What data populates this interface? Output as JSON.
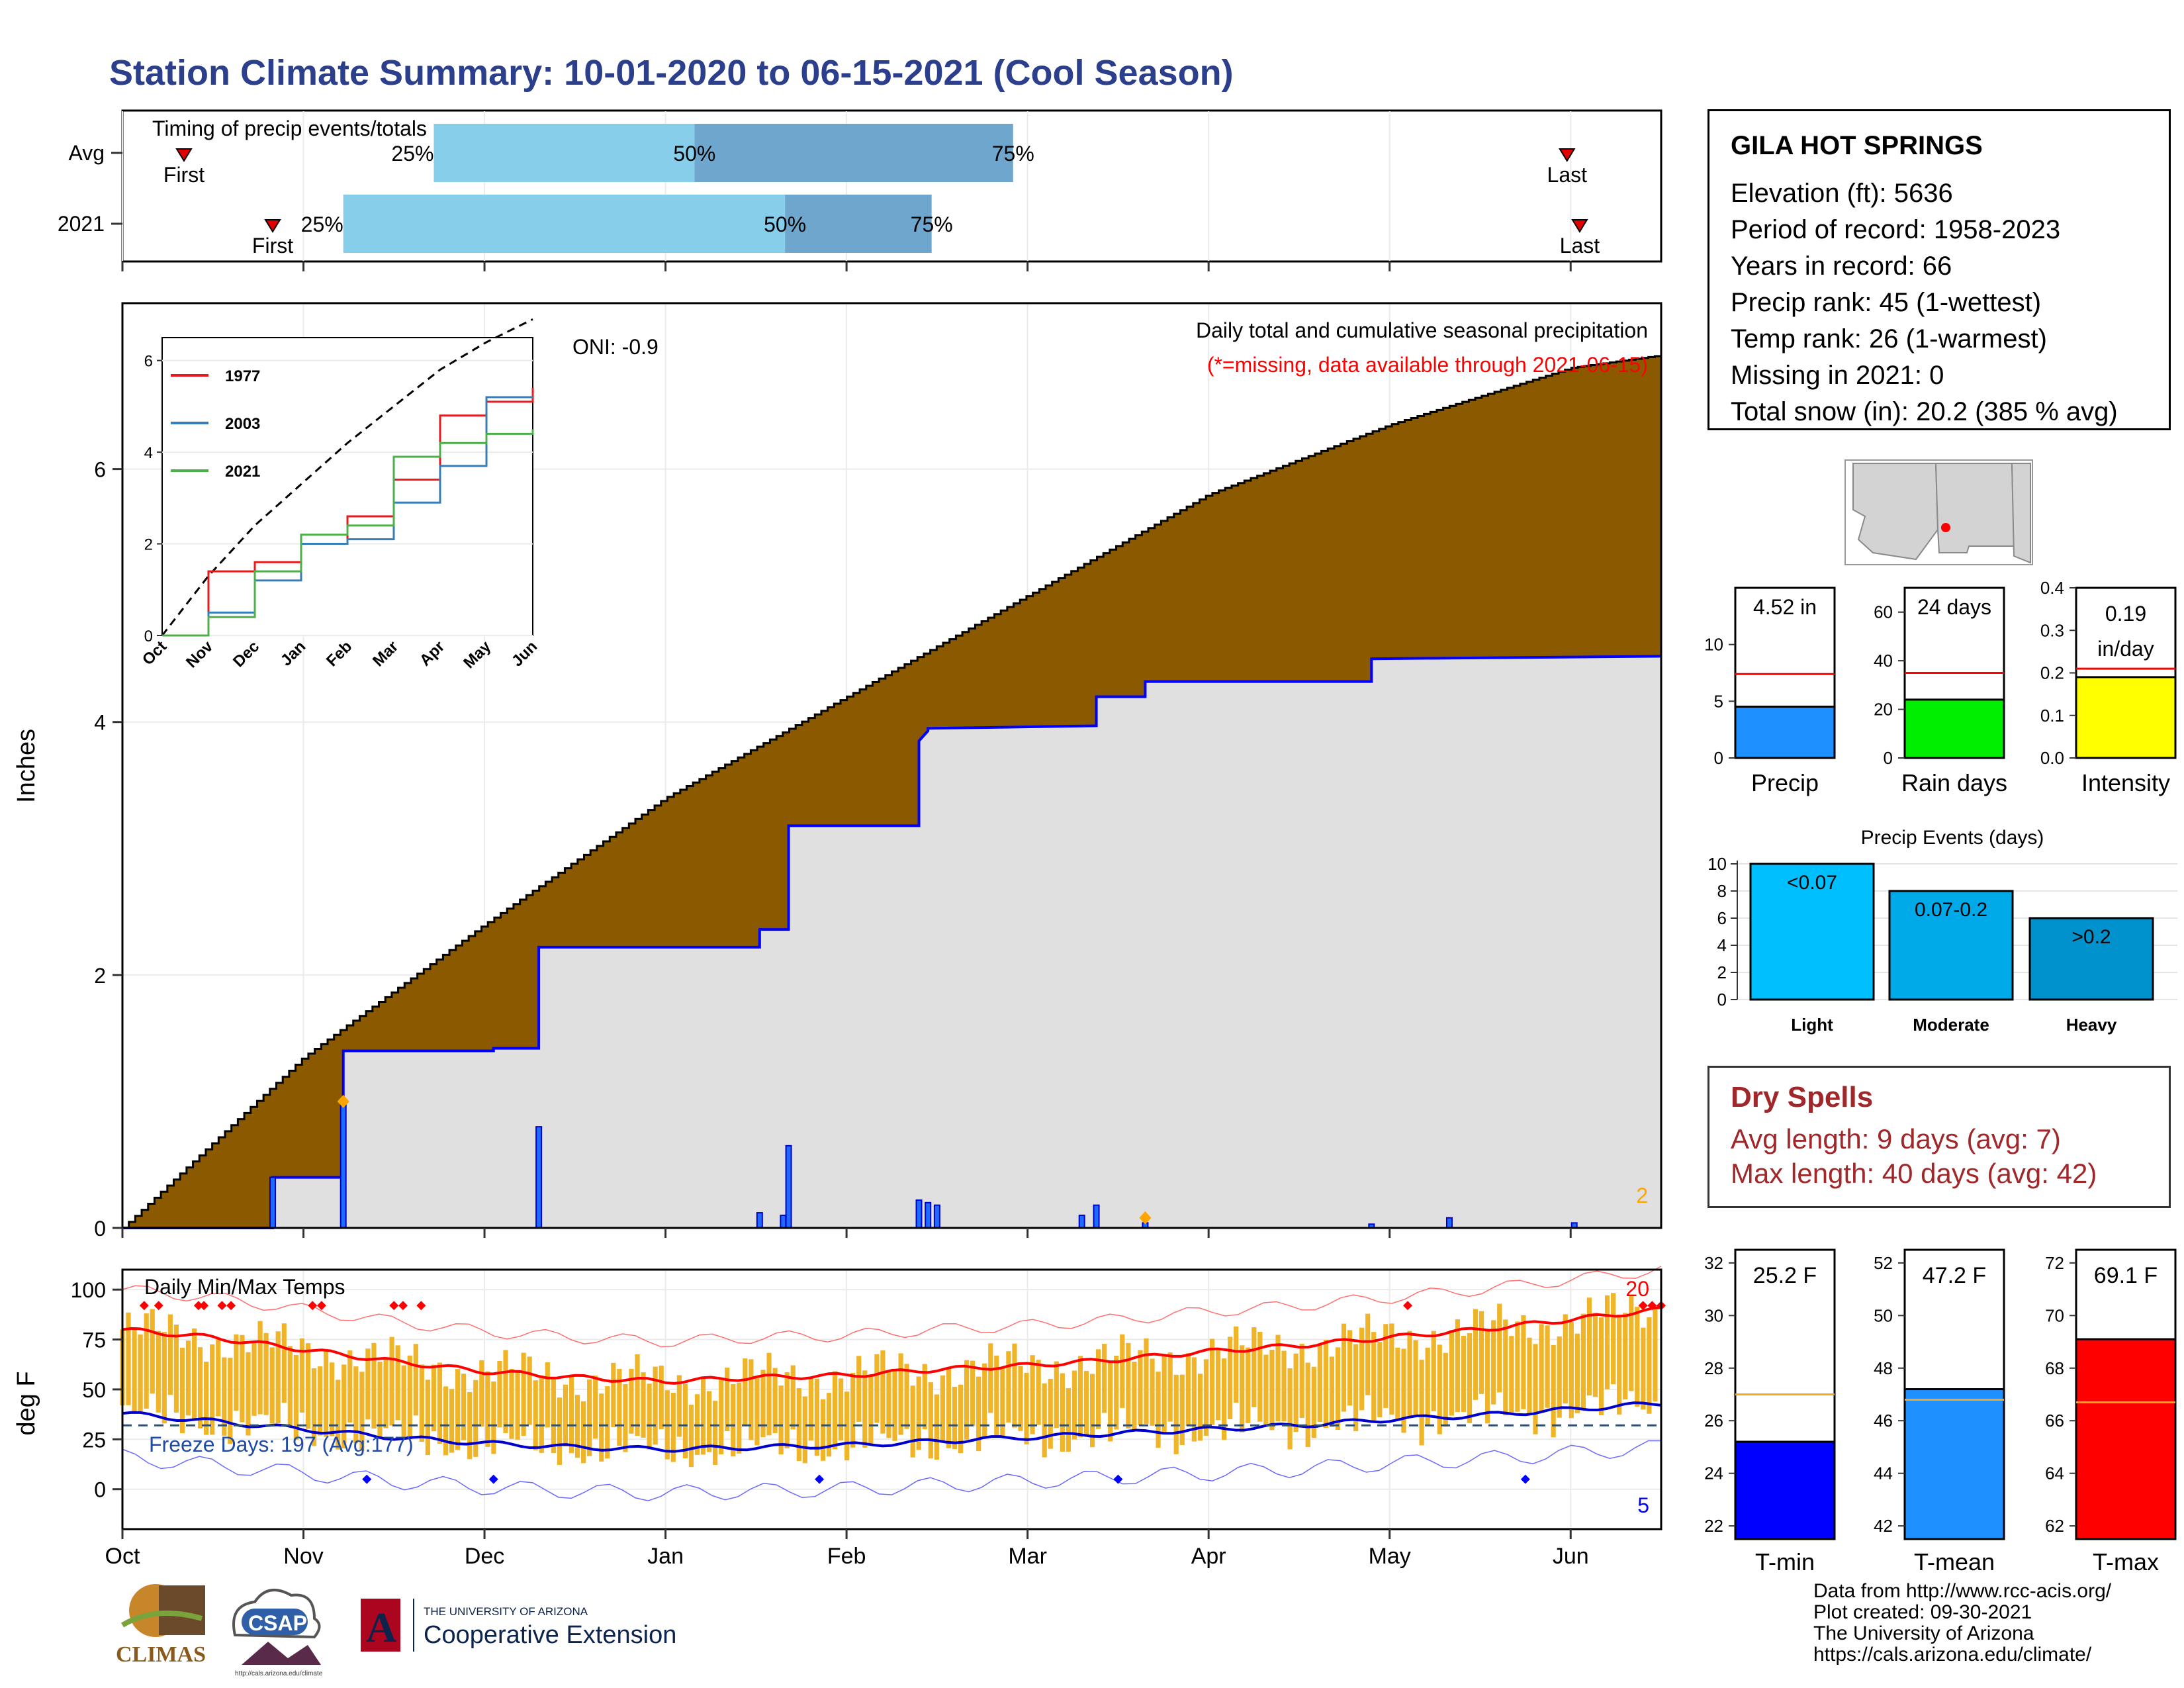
{
  "title": "Station Climate Summary: 10-01-2020 to 06-15-2021 (Cool Season)",
  "timing": {
    "heading": "Timing of precip events/totals",
    "rows": [
      {
        "label": "Avg",
        "first": 0.34,
        "p25": 1.72,
        "p50": 3.16,
        "p75": 4.92,
        "last": 7.98
      },
      {
        "label": "2021",
        "first": 0.83,
        "p25": 1.22,
        "p50": 3.66,
        "p75": 4.47,
        "last": 8.05
      }
    ],
    "first_label": "First",
    "last_label": "Last",
    "p25_label": "25%",
    "p50_label": "50%",
    "p75_label": "75%"
  },
  "station": {
    "name": "GILA HOT SPRINGS",
    "rows": [
      "Elevation (ft): 5636",
      "Period of record: 1958-2023",
      "Years in record: 66",
      "Precip rank: 45 (1-wettest)",
      "Temp rank: 26 (1-warmest)",
      "Missing in 2021: 0",
      "Total snow (in): 20.2 (385 % avg)"
    ]
  },
  "main_chart": {
    "ylabel": "Inches",
    "ylim": [
      0,
      7.5
    ],
    "yticks": [
      "0",
      "2",
      "4",
      "6"
    ],
    "oni": "ONI: -0.9",
    "caption1": "Daily total and cumulative seasonal precipitation",
    "caption2": "(*=missing, data available through 2021-06-15)",
    "corner_count": "2",
    "months": [
      "Oct",
      "Nov",
      "Dec",
      "Jan",
      "Feb",
      "Mar",
      "Apr",
      "May",
      "Jun"
    ]
  },
  "chart_data": [
    {
      "type": "area",
      "name": "cumulative precipitation",
      "x_months": [
        0,
        1,
        2,
        3,
        4,
        5,
        6,
        7,
        8,
        8.5
      ],
      "avg_cumulative": [
        0,
        1.35,
        2.4,
        3.4,
        4.2,
        5.0,
        5.8,
        6.35,
        6.8,
        6.9
      ],
      "obs_steps_x": [
        0,
        0.83,
        0.83,
        1.22,
        1.22,
        2.05,
        2.05,
        2.3,
        2.3,
        3.52,
        3.52,
        3.68,
        3.68,
        4.4,
        4.4,
        4.45,
        4.45,
        5.38,
        5.38,
        5.65,
        5.65,
        6.9,
        6.9,
        8.5
      ],
      "obs_steps_y": [
        0,
        0,
        0.4,
        0.4,
        1.4,
        1.4,
        1.42,
        1.42,
        2.22,
        2.22,
        2.36,
        2.36,
        3.18,
        3.18,
        3.85,
        3.93,
        3.95,
        3.97,
        4.2,
        4.2,
        4.32,
        4.32,
        4.5,
        4.52
      ]
    },
    {
      "type": "bar",
      "name": "daily precipitation",
      "x_months": [
        0.83,
        1.22,
        2.3,
        3.52,
        3.65,
        3.68,
        4.4,
        4.45,
        4.5,
        5.3,
        5.38,
        5.65,
        6.9,
        7.33,
        8.02
      ],
      "values": [
        0.4,
        1.0,
        0.8,
        0.12,
        0.1,
        0.65,
        0.22,
        0.2,
        0.18,
        0.1,
        0.18,
        0.04,
        0.03,
        0.08,
        0.04
      ]
    },
    {
      "type": "line",
      "title": "inset",
      "xlabel": "",
      "ylabel": "",
      "ylim": [
        0,
        6.5
      ],
      "categories": [
        "Oct",
        "Nov",
        "Dec",
        "Jan",
        "Feb",
        "Mar",
        "Apr",
        "May",
        "Jun"
      ],
      "series": [
        {
          "name": "1977",
          "color": "#e41a1c",
          "values": [
            0,
            1.4,
            1.6,
            2.0,
            2.6,
            3.4,
            4.8,
            5.1,
            5.4
          ]
        },
        {
          "name": "2003",
          "color": "#377eb8",
          "values": [
            0,
            0.5,
            1.2,
            2.0,
            2.1,
            2.9,
            3.7,
            5.2,
            5.2
          ]
        },
        {
          "name": "2021",
          "color": "#4daf4a",
          "values": [
            0,
            0.4,
            1.4,
            2.2,
            2.4,
            3.9,
            4.2,
            4.4,
            4.5
          ]
        }
      ],
      "avg_dashed": [
        0,
        1.3,
        2.4,
        3.3,
        4.2,
        5.0,
        5.8,
        6.4,
        6.9
      ],
      "yticks": [
        "0",
        "2",
        "4",
        "6"
      ]
    },
    {
      "type": "bar",
      "title": "precip",
      "categories": [
        "Precip"
      ],
      "values": [
        4.52
      ],
      "avg": 7.4,
      "ylim": [
        0,
        15
      ],
      "label": "4.52 in",
      "color": "#1e90ff",
      "yticks": [
        "0",
        "5",
        "10"
      ]
    },
    {
      "type": "bar",
      "title": "rain days",
      "categories": [
        "Rain days"
      ],
      "values": [
        24
      ],
      "avg": 35,
      "ylim": [
        0,
        70
      ],
      "label": "24 days",
      "color": "#00ee00",
      "yticks": [
        "0",
        "20",
        "40",
        "60"
      ]
    },
    {
      "type": "bar",
      "title": "intensity",
      "categories": [
        "Intensity"
      ],
      "values": [
        0.19
      ],
      "avg": 0.21,
      "ylim": [
        0,
        0.4
      ],
      "label1": "0.19",
      "label2": "in/day",
      "color": "#ffff00",
      "yticks": [
        "0.0",
        "0.1",
        "0.2",
        "0.3",
        "0.4"
      ]
    },
    {
      "type": "bar",
      "title": "Precip Events (days)",
      "categories": [
        "Light",
        "Moderate",
        "Heavy"
      ],
      "values": [
        10,
        8,
        6
      ],
      "labels": [
        "<0.07",
        "0.07-0.2",
        ">0.2"
      ],
      "colors": [
        "#00bfff",
        "#00a9e8",
        "#0092cc"
      ],
      "ylim": [
        0,
        10
      ],
      "yticks": [
        "0",
        "2",
        "4",
        "6",
        "8",
        "10"
      ]
    },
    {
      "type": "line",
      "title": "Daily Min/Max Temps",
      "ylabel": "deg F",
      "ylim": [
        -20,
        110
      ],
      "yticks": [
        "0",
        "25",
        "50",
        "75",
        "100"
      ],
      "x_months": [
        0,
        0.5,
        1,
        1.5,
        2,
        2.5,
        3,
        3.5,
        4,
        4.5,
        5,
        5.5,
        6,
        6.5,
        7,
        7.5,
        8,
        8.5
      ],
      "avg_max": [
        80,
        76,
        70,
        64,
        59,
        56,
        54,
        56,
        57,
        60,
        62,
        65,
        69,
        72,
        76,
        80,
        85,
        90
      ],
      "avg_min": [
        38,
        34,
        30,
        26,
        23,
        21,
        20,
        21,
        22,
        24,
        26,
        28,
        30,
        32,
        35,
        37,
        40,
        43
      ],
      "freeze_line": 32,
      "freeze_text": "Freeze Days: 197 (Avg:177)",
      "count_high": "20",
      "count_low": "5"
    },
    {
      "type": "bar",
      "title": "T-min",
      "categories": [
        "T-min"
      ],
      "values": [
        25.2
      ],
      "avg": 27.0,
      "ylim": [
        21.5,
        32.5
      ],
      "label": "25.2 F",
      "color": "#0000ff",
      "yticks": [
        "22",
        "24",
        "26",
        "28",
        "30",
        "32"
      ]
    },
    {
      "type": "bar",
      "title": "T-mean",
      "categories": [
        "T-mean"
      ],
      "values": [
        47.2
      ],
      "avg": 46.8,
      "ylim": [
        41.5,
        52.5
      ],
      "label": "47.2 F",
      "color": "#1e90ff",
      "yticks": [
        "42",
        "44",
        "46",
        "48",
        "50",
        "52"
      ]
    },
    {
      "type": "bar",
      "title": "T-max",
      "categories": [
        "T-max"
      ],
      "values": [
        69.1
      ],
      "avg": 66.7,
      "ylim": [
        61.5,
        72.5
      ],
      "label": "69.1 F",
      "color": "#ff0000",
      "yticks": [
        "62",
        "64",
        "66",
        "68",
        "70",
        "72"
      ]
    }
  ],
  "dry_spells": {
    "title": "Dry Spells",
    "avg_length": "Avg length: 9 days (avg: 7)",
    "max_length": "Max length: 40 days (avg: 42)"
  },
  "footer": {
    "line1": "Data from http://www.rcc-acis.org/",
    "line2": "Plot created: 09-30-2021",
    "line3": "The University of Arizona",
    "line4": "https://cals.arizona.edu/climate/"
  },
  "logos": {
    "climas": "CLIMAS",
    "csap": "CSAP",
    "csap_url": "http://cals.arizona.edu/climate",
    "ua_small": "THE UNIVERSITY OF ARIZONA",
    "ua_big": "Cooperative Extension",
    "ua_letter": "A"
  },
  "colors": {
    "title": "#2c3f8c",
    "cumulative_fill": "#8b5a00",
    "observed_fill": "#e0e0e0",
    "observed_line": "#0000ff",
    "temp_bar": "#f0b429",
    "avg_max_line": "#ff0000",
    "avg_min_line": "#0000cd",
    "timing_light": "#87ceeb",
    "timing_dark": "#6fa6cd"
  }
}
